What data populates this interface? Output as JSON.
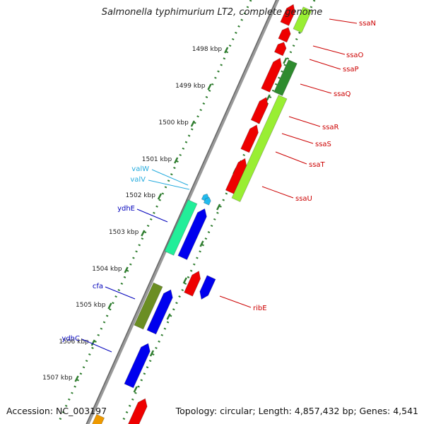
{
  "title": "Salmonella typhimurium LT2, complete genome",
  "footer": {
    "accession": "Accession: NC_003197",
    "topology": "Topology: circular; Length: 4,857,432 bp; Genes: 4,541"
  },
  "colors": {
    "backbone": "#888888",
    "tick": "#2f7d2f",
    "red_gene": "#ee0000",
    "blue_gene": "#0000ee",
    "lime_gene": "#99ee33",
    "green_gene": "#2e8b2e",
    "teal_gene": "#22ee99",
    "olive_gene": "#6b8e23",
    "trna": "#22bbee",
    "label_red": "#cc0000",
    "label_blue": "#0000bb",
    "label_cyan": "#22aadd"
  },
  "scale_labels": [
    "1498 kbp",
    "1499 kbp",
    "1500 kbp",
    "1501 kbp",
    "1502 kbp",
    "1503 kbp",
    "1504 kbp",
    "1505 kbp",
    "1506 kbp",
    "1507 kbp"
  ],
  "genes": {
    "right": [
      "ssaN",
      "ssaO",
      "ssaP",
      "ssaQ",
      "ssaR",
      "ssaS",
      "ssaT",
      "ssaU",
      "ribE"
    ],
    "left": [
      "valW",
      "valV",
      "ydhE",
      "cfa",
      "ydhC"
    ]
  }
}
